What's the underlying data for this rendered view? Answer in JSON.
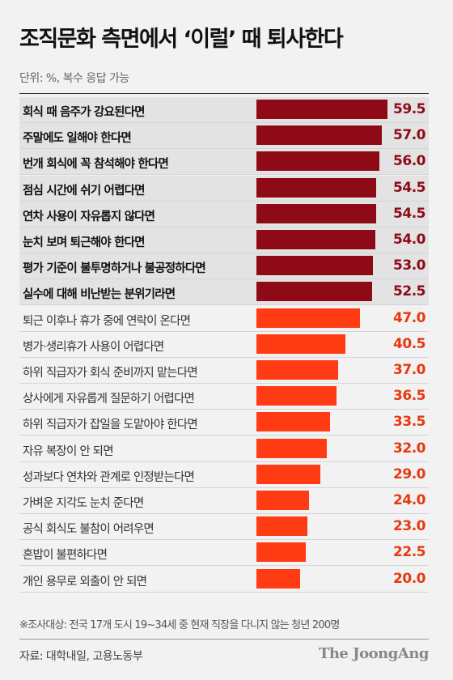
{
  "title": "조직문화 측면에서 ‘이럴’ 때 퇴사한다",
  "unit_note": "단위: %, 복수 응답 가능",
  "footnote": "※조사대상: 전국 17개 도시 19~34세 중 현재 직장을 다니지 않는 청년 200명",
  "source": "자료: 대학내일, 고용노동부",
  "brand": "The JoongAng",
  "colors": {
    "highlight_bar": "#8e0a16",
    "highlight_text": "#8e0a16",
    "normal_bar": "#ff3b14",
    "normal_text": "#e8380f",
    "highlight_row_bg": "#e3e3e3"
  },
  "chart_data": {
    "type": "bar",
    "orientation": "horizontal",
    "xlim": [
      0,
      100
    ],
    "categories": [
      "회식 때 음주가 강요된다면",
      "주말에도 일해야 한다면",
      "번개 회식에 꼭 참석해야 한다면",
      "점심 시간에 쉬기 어렵다면",
      "연차 사용이 자유롭지 않다면",
      "눈치 보며 퇴근해야 한다면",
      "평가 기준이 불투명하거나 불공정하다면",
      "실수에 대해 비난받는 분위기라면",
      "퇴근 이후나 휴가 중에 연락이 온다면",
      "병가·생리휴가 사용이 어렵다면",
      "하위 직급자가 회식 준비까지 맡는다면",
      "상사에게 자유롭게 질문하기 어렵다면",
      "하위 직급자가 잡일을 도맡아야 한다면",
      "자유 복장이 안 되면",
      "성과보다 연차와 관계로 인정받는다면",
      "가벼운 지각도 눈치 준다면",
      "공식 회식도 불참이 어려우면",
      "혼밥이 불편하다면",
      "개인 용무로 외출이 안 되면"
    ],
    "values": [
      59.5,
      57.0,
      56.0,
      54.5,
      54.5,
      54.0,
      53.0,
      52.5,
      47.0,
      40.5,
      37.0,
      36.5,
      33.5,
      32.0,
      29.0,
      24.0,
      23.0,
      22.5,
      20.0
    ],
    "value_labels": [
      "59.5",
      "57.0",
      "56.0",
      "54.5",
      "54.5",
      "54.0",
      "53.0",
      "52.5",
      "47.0",
      "40.5",
      "37.0",
      "36.5",
      "33.5",
      "32.0",
      "29.0",
      "24.0",
      "23.0",
      "22.5",
      "20.0"
    ],
    "highlighted_count": 8
  }
}
